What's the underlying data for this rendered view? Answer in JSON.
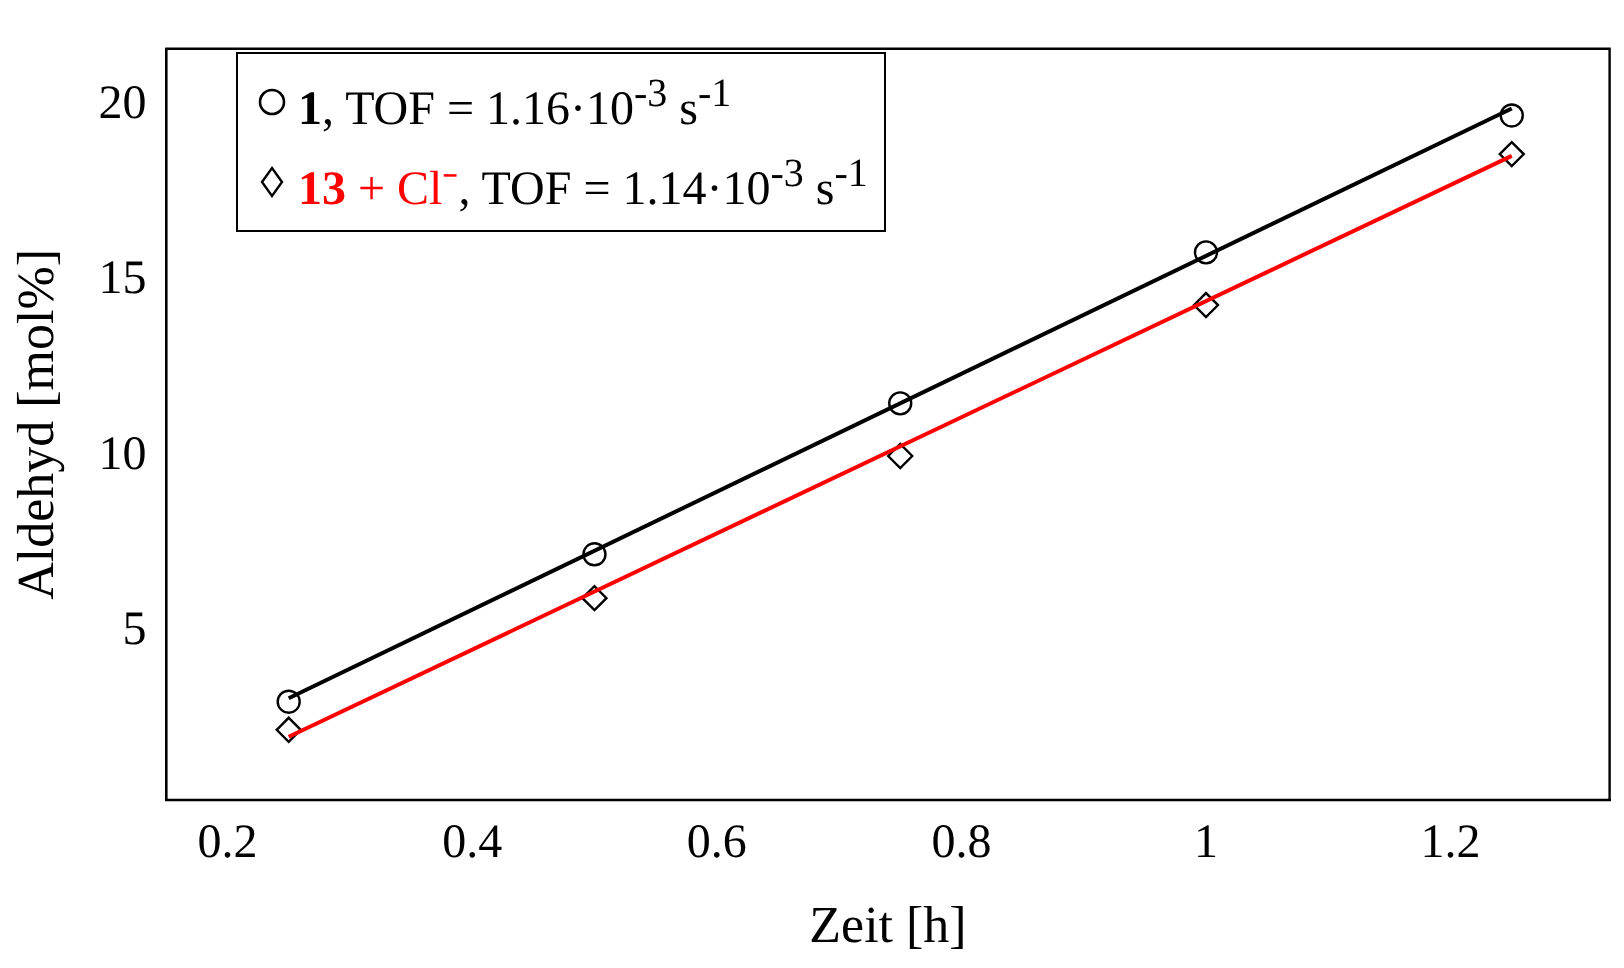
{
  "chart_data": {
    "type": "scatter",
    "xlabel": "Zeit [h]",
    "ylabel": "Aldehyd [mol%]",
    "xlim": [
      0.15,
      1.33
    ],
    "xticks": [
      0.2,
      0.4,
      0.6,
      0.8,
      1,
      1.2
    ],
    "ylim": [
      0.2,
      21.6
    ],
    "yticks": [
      5,
      10,
      15,
      20
    ],
    "grid": false,
    "legend": "top left",
    "series": [
      {
        "name": "1, TOF = 1.16·10$^{-3}$ s$^{-1}$",
        "color": "#000000",
        "marker": "circle",
        "x": [
          0.25,
          0.5,
          0.75,
          1,
          1.25
        ],
        "values": [
          3.0,
          7.2,
          11.5,
          15.8,
          19.7
        ]
      },
      {
        "name": "13 + Cl⁻, TOF = 1.14·10$^{-3}$ s$^{-1}$",
        "color": "#000000",
        "marker": "diamond",
        "x": [
          0.25,
          0.5,
          0.75,
          1,
          1.25
        ],
        "values": [
          2.2,
          5.95,
          10.0,
          14.3,
          18.6
        ]
      },
      {
        "type": "line",
        "color": "#000000",
        "x": [
          0.25,
          1.25
        ],
        "values": [
          3.1,
          19.9
        ]
      },
      {
        "type": "line",
        "color": "#ff0000",
        "x": [
          0.25,
          1.25
        ],
        "values": [
          2.0,
          18.55
        ]
      }
    ]
  }
}
